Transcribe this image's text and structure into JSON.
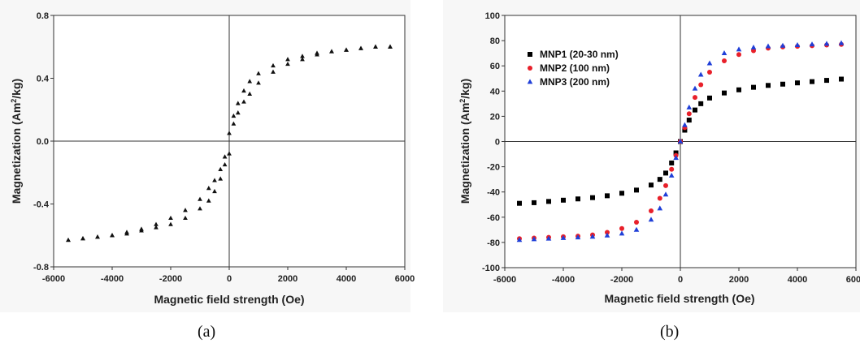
{
  "captions": {
    "a": "(a)",
    "b": "(b)"
  },
  "chart_data": [
    {
      "type": "scatter",
      "panel": "a",
      "xlabel": "Magnetic field strength (Oe)",
      "ylabel_main": "Magnetization (Am",
      "ylabel_sup": "2",
      "ylabel_end": "/kg)",
      "xlim": [
        -6000,
        6000
      ],
      "ylim": [
        -0.8,
        0.8
      ],
      "xticks": [
        -6000,
        -4000,
        -2000,
        0,
        2000,
        4000,
        6000
      ],
      "yticks": [
        -0.8,
        -0.4,
        0.0,
        0.4,
        0.8
      ],
      "ytick_labels": [
        "-0.8",
        "-0.4",
        "0.0",
        "0.4",
        "0.8"
      ],
      "grid": false,
      "series": [
        {
          "marker": "triangle",
          "color": "#111111",
          "x": [
            -5500,
            -5000,
            -4500,
            -4000,
            -3500,
            -3000,
            -2500,
            -2000,
            -1500,
            -1000,
            -700,
            -500,
            -300,
            -150,
            0,
            150,
            300,
            500,
            700,
            1000,
            1500,
            2000,
            2500,
            3000,
            3500,
            4000,
            4500,
            5000,
            5500
          ],
          "y": [
            -0.63,
            -0.62,
            -0.61,
            -0.6,
            -0.59,
            -0.57,
            -0.55,
            -0.53,
            -0.49,
            -0.43,
            -0.38,
            -0.32,
            -0.24,
            -0.15,
            -0.08,
            0.16,
            0.24,
            0.32,
            0.38,
            0.43,
            0.48,
            0.52,
            0.54,
            0.56,
            0.57,
            0.58,
            0.59,
            0.6,
            0.6
          ]
        },
        {
          "marker": "triangle",
          "color": "#111111",
          "x": [
            5500,
            5000,
            4500,
            4000,
            3500,
            3000,
            2500,
            2000,
            1500,
            1000,
            700,
            500,
            300,
            150,
            0,
            -150,
            -300,
            -500,
            -700,
            -1000,
            -1500,
            -2000,
            -2500,
            -3000,
            -3500,
            -4000,
            -4500,
            -5000,
            -5500
          ],
          "y": [
            0.6,
            0.6,
            0.59,
            0.58,
            0.57,
            0.55,
            0.52,
            0.49,
            0.44,
            0.37,
            0.3,
            0.25,
            0.18,
            0.11,
            0.05,
            -0.1,
            -0.18,
            -0.25,
            -0.3,
            -0.37,
            -0.44,
            -0.49,
            -0.53,
            -0.56,
            -0.58,
            -0.6,
            -0.61,
            -0.62,
            -0.63
          ]
        }
      ]
    },
    {
      "type": "scatter",
      "panel": "b",
      "xlabel": "Magnetic field strength (Oe)",
      "ylabel_main": "Magnetization (Am",
      "ylabel_sup": "2",
      "ylabel_end": "/kg)",
      "xlim": [
        -6000,
        6000
      ],
      "ylim": [
        -100,
        100
      ],
      "xticks": [
        -6000,
        -4000,
        -2000,
        0,
        2000,
        4000,
        6000
      ],
      "yticks": [
        -100,
        -80,
        -60,
        -40,
        -20,
        0,
        20,
        40,
        60,
        80,
        100
      ],
      "ytick_labels": [
        "-100",
        "-80",
        "-60",
        "-40",
        "-20",
        "0",
        "20",
        "40",
        "60",
        "80",
        "100"
      ],
      "grid": false,
      "legend_position": "top-left",
      "series": [
        {
          "name": "MNP1 (20-30 nm)",
          "marker": "square",
          "color": "#000000",
          "x": [
            -5500,
            -5000,
            -4500,
            -4000,
            -3500,
            -3000,
            -2500,
            -2000,
            -1500,
            -1000,
            -700,
            -500,
            -300,
            -150,
            0,
            150,
            300,
            500,
            700,
            1000,
            1500,
            2000,
            2500,
            3000,
            3500,
            4000,
            4500,
            5000,
            5500
          ],
          "y": [
            -49,
            -48.5,
            -47.5,
            -46.5,
            -45.5,
            -44.5,
            -43,
            -41,
            -38.5,
            -34.5,
            -30,
            -25,
            -17,
            -9,
            0,
            9,
            17,
            25,
            30,
            34.5,
            38.5,
            41,
            43,
            44.5,
            45.5,
            46.5,
            47.5,
            48.5,
            49.5
          ]
        },
        {
          "name": "MNP2 (100 nm)",
          "marker": "circle",
          "color": "#e8202a",
          "x": [
            -5500,
            -5000,
            -4500,
            -4000,
            -3500,
            -3000,
            -2500,
            -2000,
            -1500,
            -1000,
            -700,
            -500,
            -300,
            -150,
            0,
            150,
            300,
            500,
            700,
            1000,
            1500,
            2000,
            2500,
            3000,
            3500,
            4000,
            4500,
            5000,
            5500
          ],
          "y": [
            -77,
            -76.5,
            -76,
            -75.5,
            -75,
            -74,
            -72,
            -69,
            -64,
            -55,
            -45,
            -35,
            -22,
            -11,
            0,
            11,
            22,
            35,
            45,
            55,
            64,
            69,
            72,
            74,
            75,
            75.5,
            76,
            76.5,
            77
          ]
        },
        {
          "name": "MNP3 (200 nm)",
          "marker": "triangle",
          "color": "#1f3fd8",
          "x": [
            -5500,
            -5000,
            -4500,
            -4000,
            -3500,
            -3000,
            -2500,
            -2000,
            -1500,
            -1000,
            -700,
            -500,
            -300,
            -150,
            0,
            150,
            300,
            500,
            700,
            1000,
            1500,
            2000,
            2500,
            3000,
            3500,
            4000,
            4500,
            5000,
            5500
          ],
          "y": [
            -78,
            -77.5,
            -77,
            -76.5,
            -76,
            -75.5,
            -74.5,
            -73,
            -70,
            -62,
            -53,
            -42,
            -27,
            -13,
            0,
            13,
            27,
            42,
            53,
            62,
            70,
            73,
            74.5,
            75.5,
            76,
            76.5,
            77,
            77.5,
            78
          ]
        }
      ]
    }
  ]
}
